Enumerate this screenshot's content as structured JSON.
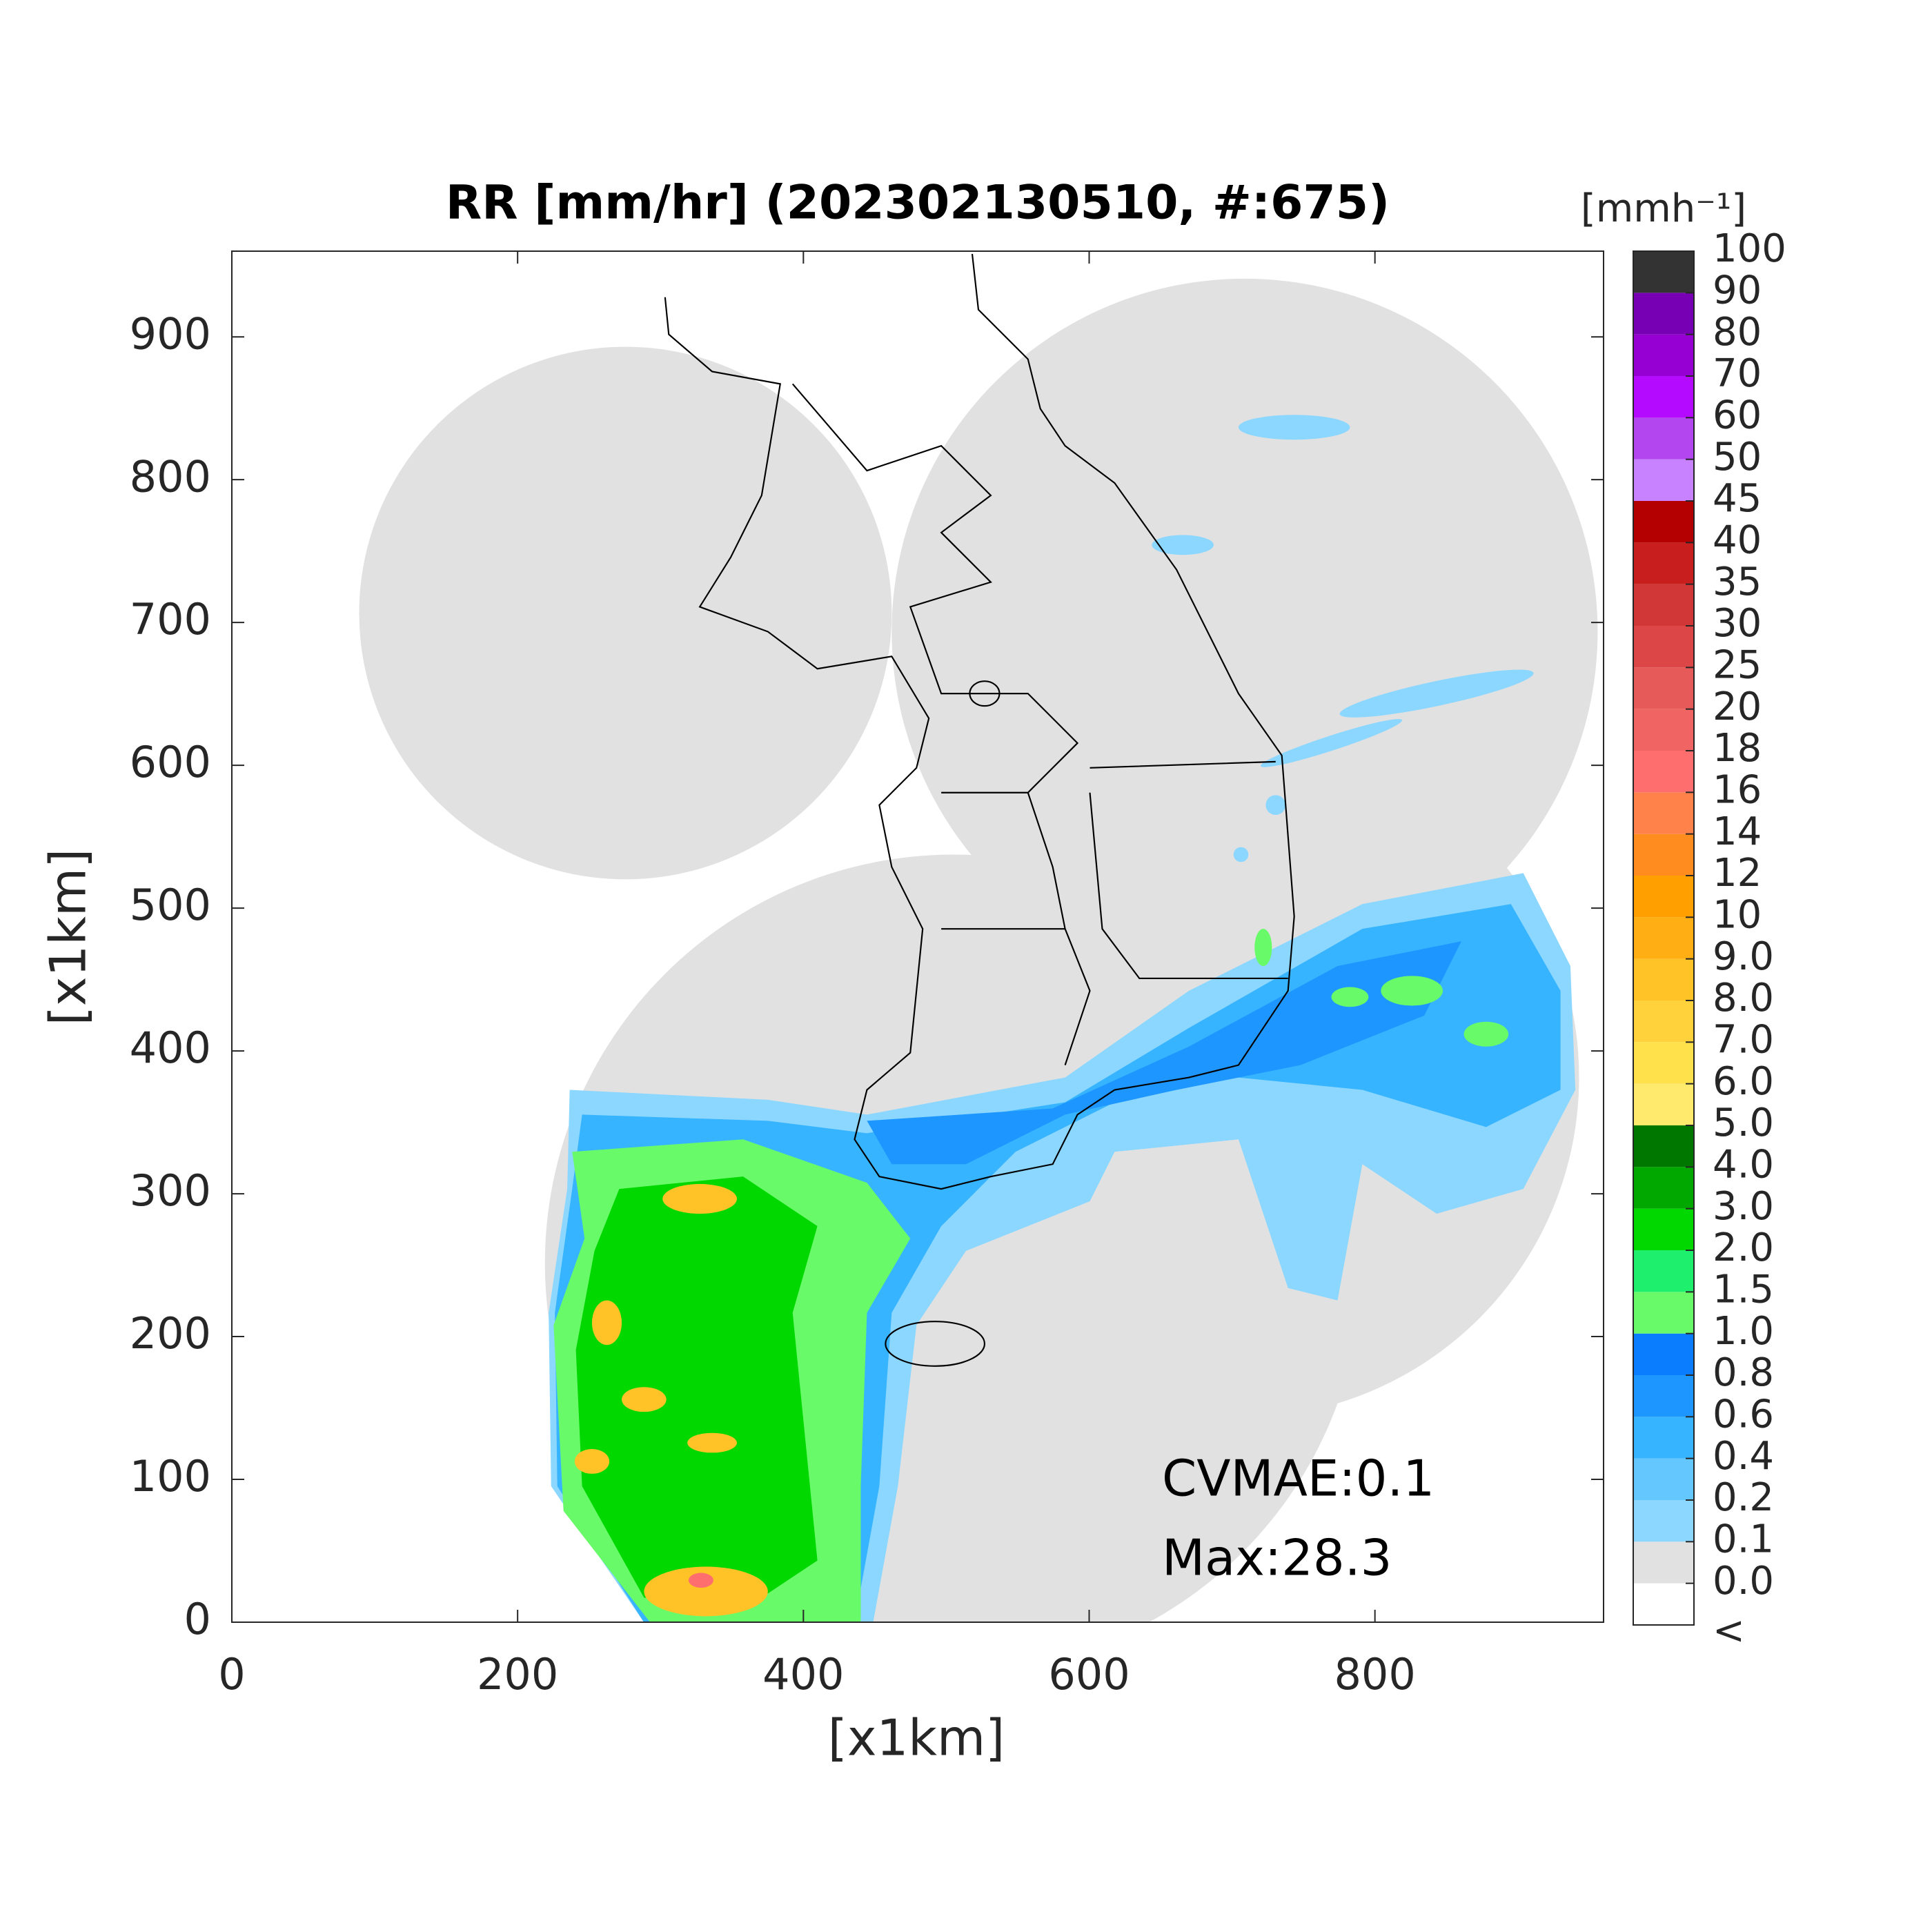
{
  "chart_data": {
    "type": "map",
    "title": "RR [mm/hr] (202302130510, #:675)",
    "x_label": "[x1km]",
    "y_label": "[x1km]",
    "xlim": [
      0,
      960
    ],
    "ylim": [
      0,
      960
    ],
    "xticks": [
      0,
      200,
      400,
      600,
      800
    ],
    "yticks": [
      0,
      100,
      200,
      300,
      400,
      500,
      600,
      700,
      800,
      900
    ],
    "grid": false,
    "annotations": [
      "CVMAE:0.1",
      "Max:28.3"
    ],
    "colorbar": {
      "label": "[mmh⁻¹]",
      "ticks": [
        "<",
        "0.0",
        "0.1",
        "0.2",
        "0.4",
        "0.6",
        "0.8",
        "1.0",
        "1.5",
        "2.0",
        "3.0",
        "4.0",
        "5.0",
        "6.0",
        "7.0",
        "8.0",
        "9.0",
        "10",
        "12",
        "14",
        "16",
        "18",
        "20",
        "25",
        "30",
        "35",
        "40",
        "45",
        "50",
        "60",
        "70",
        "80",
        "90",
        "100"
      ],
      "colors": [
        "#ffffff",
        "#e1e1e1",
        "#8cd7ff",
        "#64c8ff",
        "#37b4ff",
        "#1e96ff",
        "#0a7dff",
        "#69fa69",
        "#1ef06e",
        "#00d800",
        "#00a800",
        "#007800",
        "#ffea6e",
        "#ffe14b",
        "#ffd23c",
        "#ffc328",
        "#ffaf14",
        "#ffa000",
        "#ff8c1e",
        "#ff824b",
        "#ff6e6e",
        "#f06464",
        "#e65a5a",
        "#dc4646",
        "#d23737",
        "#c81e1e",
        "#b40000",
        "#c882ff",
        "#b446f0",
        "#b40aff",
        "#9600d2",
        "#7800b4",
        "#333333"
      ]
    }
  }
}
